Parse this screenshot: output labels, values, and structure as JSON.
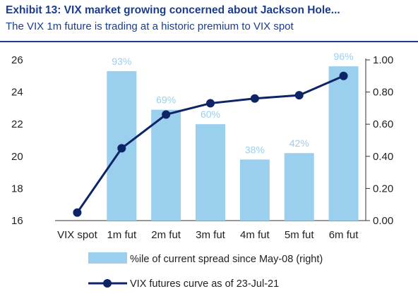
{
  "header": {
    "title": "Exhibit 13: VIX market growing concerned about Jackson Hole...",
    "subtitle": "The VIX 1m future is trading at a historic premium to VIX spot"
  },
  "colors": {
    "bar": "#9bcfee",
    "line": "#0d2466",
    "title": "#1b3d8f",
    "bar_label": "#9bcfee"
  },
  "chart_data": {
    "type": "bar",
    "title": "Exhibit 13: VIX market growing concerned about Jackson Hole...",
    "subtitle": "The VIX 1m future is trading at a historic premium to VIX spot",
    "categories": [
      "VIX spot",
      "1m fut",
      "2m fut",
      "3m fut",
      "4m fut",
      "5m fut",
      "6m fut"
    ],
    "left_axis": {
      "ticks": [
        "26",
        "24",
        "22",
        "20",
        "18",
        "16"
      ],
      "ylim": [
        16,
        26
      ]
    },
    "right_axis": {
      "ticks": [
        "1.00",
        "0.80",
        "0.60",
        "0.40",
        "0.20",
        "0.00"
      ],
      "ylim": [
        0,
        1
      ]
    },
    "series": [
      {
        "name": "%ile of current spread since May-08 (right)",
        "type": "bar",
        "axis": "right",
        "values": [
          null,
          0.93,
          0.69,
          0.6,
          0.38,
          0.42,
          0.96
        ],
        "labels": [
          "",
          "93%",
          "69%",
          "60%",
          "38%",
          "42%",
          "96%"
        ]
      },
      {
        "name": "VIX futures curve as of 23-Jul-21",
        "type": "line",
        "axis": "left",
        "values": [
          16.5,
          20.5,
          22.6,
          23.3,
          23.6,
          23.8,
          25.0
        ]
      }
    ],
    "legend": "bottom"
  }
}
